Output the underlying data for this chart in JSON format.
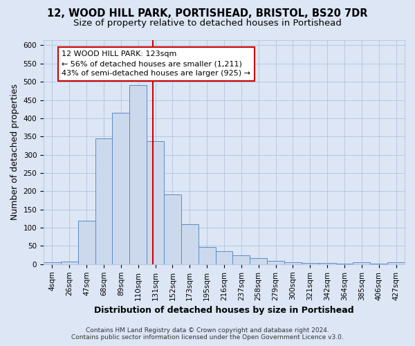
{
  "title_line1": "12, WOOD HILL PARK, PORTISHEAD, BRISTOL, BS20 7DR",
  "title_line2": "Size of property relative to detached houses in Portishead",
  "xlabel": "Distribution of detached houses by size in Portishead",
  "ylabel": "Number of detached properties",
  "categories": [
    "4sqm",
    "26sqm",
    "47sqm",
    "68sqm",
    "89sqm",
    "110sqm",
    "131sqm",
    "152sqm",
    "173sqm",
    "195sqm",
    "216sqm",
    "237sqm",
    "258sqm",
    "279sqm",
    "300sqm",
    "321sqm",
    "342sqm",
    "364sqm",
    "385sqm",
    "406sqm",
    "427sqm"
  ],
  "values": [
    5,
    7,
    120,
    345,
    415,
    490,
    338,
    192,
    110,
    48,
    35,
    25,
    16,
    10,
    5,
    3,
    3,
    2,
    5,
    2,
    5
  ],
  "bar_color": "#ccd9ed",
  "bar_edge_color": "#5b8ac5",
  "vline_color": "#cc0000",
  "vline_x_index": 6,
  "annotation_text": "12 WOOD HILL PARK: 123sqm\n← 56% of detached houses are smaller (1,211)\n43% of semi-detached houses are larger (925) →",
  "annotation_box_facecolor": "#ffffff",
  "annotation_box_edgecolor": "#cc0000",
  "ylim": [
    0,
    615
  ],
  "yticks": [
    0,
    50,
    100,
    150,
    200,
    250,
    300,
    350,
    400,
    450,
    500,
    550,
    600
  ],
  "footer_line1": "Contains HM Land Registry data © Crown copyright and database right 2024.",
  "footer_line2": "Contains public sector information licensed under the Open Government Licence v3.0.",
  "bg_color": "#dce6f5",
  "plot_bg_color": "#dce6f5",
  "title_fontsize": 10.5,
  "subtitle_fontsize": 9.5,
  "axis_label_fontsize": 9,
  "tick_fontsize": 7.5,
  "annotation_fontsize": 8,
  "footer_fontsize": 6.5,
  "grid_color": "#b0c4de"
}
